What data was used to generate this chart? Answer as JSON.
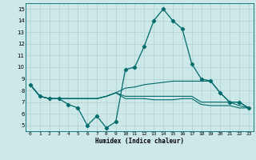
{
  "xlabel": "Humidex (Indice chaleur)",
  "ylabel": "",
  "background_color": "#cce8e8",
  "grid_color": "#b0d0d0",
  "line_color": "#006b6b",
  "xlim": [
    -0.5,
    23.5
  ],
  "ylim": [
    4.5,
    15.5
  ],
  "yticks": [
    5,
    6,
    7,
    8,
    9,
    10,
    11,
    12,
    13,
    14,
    15
  ],
  "xticks": [
    0,
    1,
    2,
    3,
    4,
    5,
    6,
    7,
    8,
    9,
    10,
    11,
    12,
    13,
    14,
    15,
    16,
    17,
    18,
    19,
    20,
    21,
    22,
    23
  ],
  "series": [
    {
      "x": [
        0,
        1,
        2,
        3,
        4,
        5,
        6,
        7,
        8,
        9,
        10,
        11,
        12,
        13,
        14,
        15,
        16,
        17,
        18,
        19,
        20,
        21,
        22,
        23
      ],
      "y": [
        8.5,
        7.5,
        7.3,
        7.3,
        6.8,
        6.5,
        5.0,
        5.8,
        4.8,
        5.3,
        9.8,
        10.0,
        11.8,
        14.0,
        15.0,
        14.0,
        13.3,
        10.3,
        9.0,
        8.8,
        7.8,
        7.0,
        7.0,
        6.5
      ],
      "marker": "D",
      "markersize": 2.2,
      "linewidth": 0.9
    },
    {
      "x": [
        0,
        1,
        2,
        3,
        4,
        5,
        6,
        7,
        8,
        9,
        10,
        11,
        12,
        13,
        14,
        15,
        16,
        17,
        18,
        19,
        20,
        21,
        22,
        23
      ],
      "y": [
        8.5,
        7.5,
        7.3,
        7.3,
        7.3,
        7.3,
        7.3,
        7.3,
        7.5,
        7.8,
        8.2,
        8.3,
        8.5,
        8.6,
        8.7,
        8.8,
        8.8,
        8.8,
        8.8,
        8.8,
        7.8,
        7.0,
        7.0,
        6.5
      ],
      "marker": null,
      "markersize": 0,
      "linewidth": 0.8
    },
    {
      "x": [
        0,
        1,
        2,
        3,
        4,
        5,
        6,
        7,
        8,
        9,
        10,
        11,
        12,
        13,
        14,
        15,
        16,
        17,
        18,
        19,
        20,
        21,
        22,
        23
      ],
      "y": [
        8.5,
        7.5,
        7.3,
        7.3,
        7.3,
        7.3,
        7.3,
        7.3,
        7.5,
        7.8,
        7.5,
        7.5,
        7.5,
        7.5,
        7.5,
        7.5,
        7.5,
        7.5,
        7.0,
        7.0,
        7.0,
        7.0,
        6.7,
        6.5
      ],
      "marker": null,
      "markersize": 0,
      "linewidth": 0.8
    },
    {
      "x": [
        0,
        1,
        2,
        3,
        4,
        5,
        6,
        7,
        8,
        9,
        10,
        11,
        12,
        13,
        14,
        15,
        16,
        17,
        18,
        19,
        20,
        21,
        22,
        23
      ],
      "y": [
        8.5,
        7.5,
        7.3,
        7.3,
        7.3,
        7.3,
        7.3,
        7.3,
        7.5,
        7.8,
        7.3,
        7.3,
        7.3,
        7.2,
        7.2,
        7.2,
        7.3,
        7.3,
        6.8,
        6.7,
        6.7,
        6.7,
        6.5,
        6.5
      ],
      "marker": null,
      "markersize": 0,
      "linewidth": 0.8
    }
  ],
  "xlabel_fontsize": 5.5,
  "xlabel_fontweight": "bold",
  "xtick_fontsize": 4.5,
  "ytick_fontsize": 5.0
}
